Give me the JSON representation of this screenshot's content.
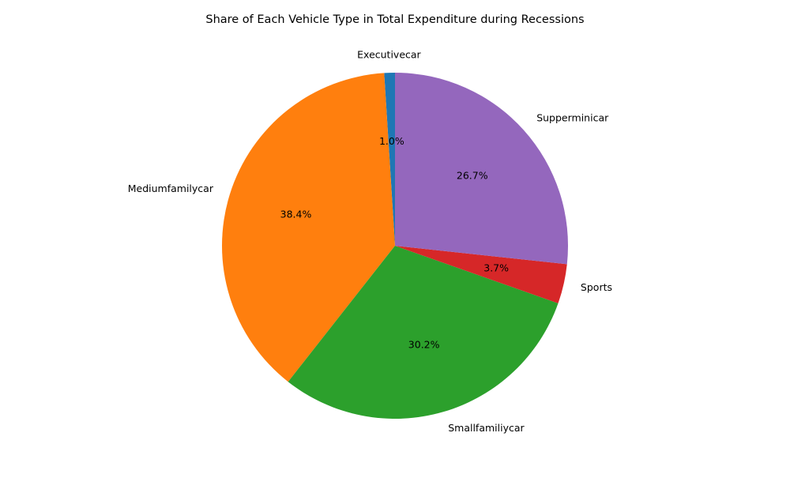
{
  "chart_data": {
    "type": "pie",
    "title": "Share of Each Vehicle Type in Total Expenditure during Recessions",
    "categories": [
      "Executivecar",
      "Mediumfamilycar",
      "Smallfamiliycar",
      "Sports",
      "Supperminicar"
    ],
    "values": [
      1.0,
      38.4,
      30.2,
      3.7,
      26.7
    ],
    "value_labels": [
      "1.0%",
      "38.4%",
      "30.2%",
      "3.7%",
      "26.7%"
    ],
    "colors": [
      "#1f77b4",
      "#ff7f0e",
      "#2ca02c",
      "#d62728",
      "#9467bd"
    ],
    "start_angle_deg": 90,
    "direction": "counterclockwise",
    "legend": "none"
  }
}
